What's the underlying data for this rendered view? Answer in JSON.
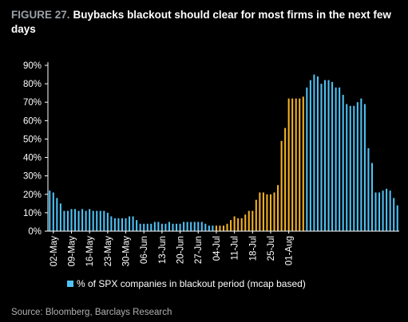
{
  "title": {
    "figure_label": "FIGURE 27.",
    "text": "Buybacks blackout should clear for most firms in the next few days"
  },
  "source": "Source: Bloomberg, Barclays Research",
  "colors": {
    "historical": "#4fc3f7",
    "highlight": "#f5b324",
    "background": "#000000",
    "axis": "#ffffff"
  },
  "chart_data": {
    "type": "bar",
    "ylim": [
      0,
      90
    ],
    "y_ticks": [
      "0%",
      "10%",
      "20%",
      "30%",
      "40%",
      "50%",
      "60%",
      "70%",
      "80%",
      "90%"
    ],
    "x_tick_labels": [
      "02-May",
      "09-May",
      "16-May",
      "23-May",
      "30-May",
      "06-Jun",
      "13-Jun",
      "20-Jun",
      "27-Jun",
      "04-Jul",
      "11-Jul",
      "18-Jul",
      "25-Jul",
      "01-Aug"
    ],
    "legend": "% of SPX companies in blackout period (mcap based)",
    "grid": false,
    "highlight_range": [
      "04-Jul",
      "26-Jul"
    ],
    "series": [
      {
        "name": "% of SPX companies in blackout period (mcap based)",
        "values": [
          22,
          21,
          18,
          15,
          11,
          11,
          12,
          12,
          11,
          12,
          11,
          12,
          11,
          11,
          11,
          11,
          10,
          8,
          7,
          7,
          7,
          7,
          8,
          8,
          6,
          4,
          4,
          4,
          4,
          5,
          5,
          4,
          4,
          5,
          4,
          4,
          4,
          5,
          5,
          5,
          5,
          5,
          5,
          4,
          3,
          3,
          3,
          3,
          3,
          4,
          6,
          8,
          7,
          7,
          9,
          11,
          11,
          17,
          21,
          21,
          20,
          20,
          21,
          25,
          49,
          56,
          72,
          72,
          72,
          72,
          73,
          78,
          82,
          85,
          84,
          80,
          82,
          82,
          81,
          78,
          78,
          74,
          69,
          68,
          68,
          70,
          72,
          69,
          45,
          37,
          21,
          21,
          22,
          23,
          22,
          18,
          14
        ]
      }
    ]
  }
}
